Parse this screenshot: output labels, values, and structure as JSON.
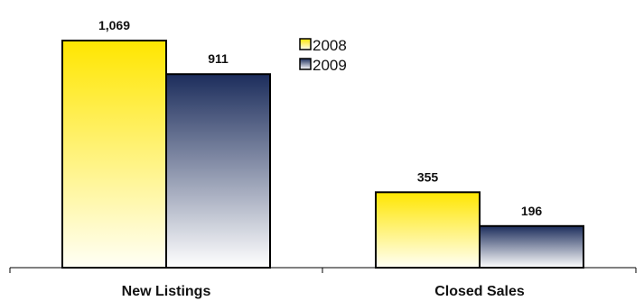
{
  "chart_data": {
    "type": "bar",
    "title": "",
    "xlabel": "",
    "ylabel": "",
    "categories": [
      "New Listings",
      "Closed Sales"
    ],
    "series": [
      {
        "name": "2008",
        "values": [
          1069,
          355
        ],
        "labels": [
          "1,069",
          "355"
        ],
        "color_top": "#ffe600",
        "color_bottom": "#fffff6"
      },
      {
        "name": "2009",
        "values": [
          911,
          196
        ],
        "labels": [
          "911",
          "196"
        ],
        "color_top": "#1c2d5c",
        "color_bottom": "#ffffff"
      }
    ],
    "ylim": [
      0,
      1069
    ],
    "grid": false,
    "legend": "top-center"
  }
}
